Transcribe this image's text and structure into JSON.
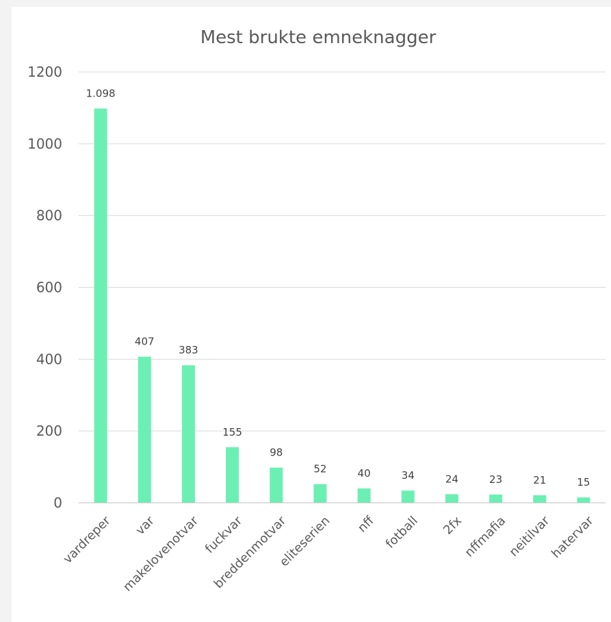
{
  "chart_data": {
    "type": "bar",
    "title": "Mest brukte emneknagger",
    "xlabel": "",
    "ylabel": "",
    "ylim": [
      0,
      1200
    ],
    "yticks": [
      {
        "value": 0,
        "label": "0"
      },
      {
        "value": 200,
        "label": "200"
      },
      {
        "value": 400,
        "label": "400"
      },
      {
        "value": 600,
        "label": "600"
      },
      {
        "value": 800,
        "label": "800"
      },
      {
        "value": 1000,
        "label": "1000"
      },
      {
        "value": 1200,
        "label": "1200"
      }
    ],
    "grid": true,
    "bar_color": "#6cefb3",
    "categories": [
      "vardreper",
      "var",
      "makelovenotvar",
      "fuckvar",
      "breddenmotvar",
      "eliteserien",
      "nff",
      "fotball",
      "2fx",
      "nffmafia",
      "neitilvar",
      "hatervar"
    ],
    "values": [
      1098,
      407,
      383,
      155,
      98,
      52,
      40,
      34,
      24,
      23,
      21,
      15
    ],
    "data_labels": [
      "1.098",
      "407",
      "383",
      "155",
      "98",
      "52",
      "40",
      "34",
      "24",
      "23",
      "21",
      "15"
    ]
  }
}
